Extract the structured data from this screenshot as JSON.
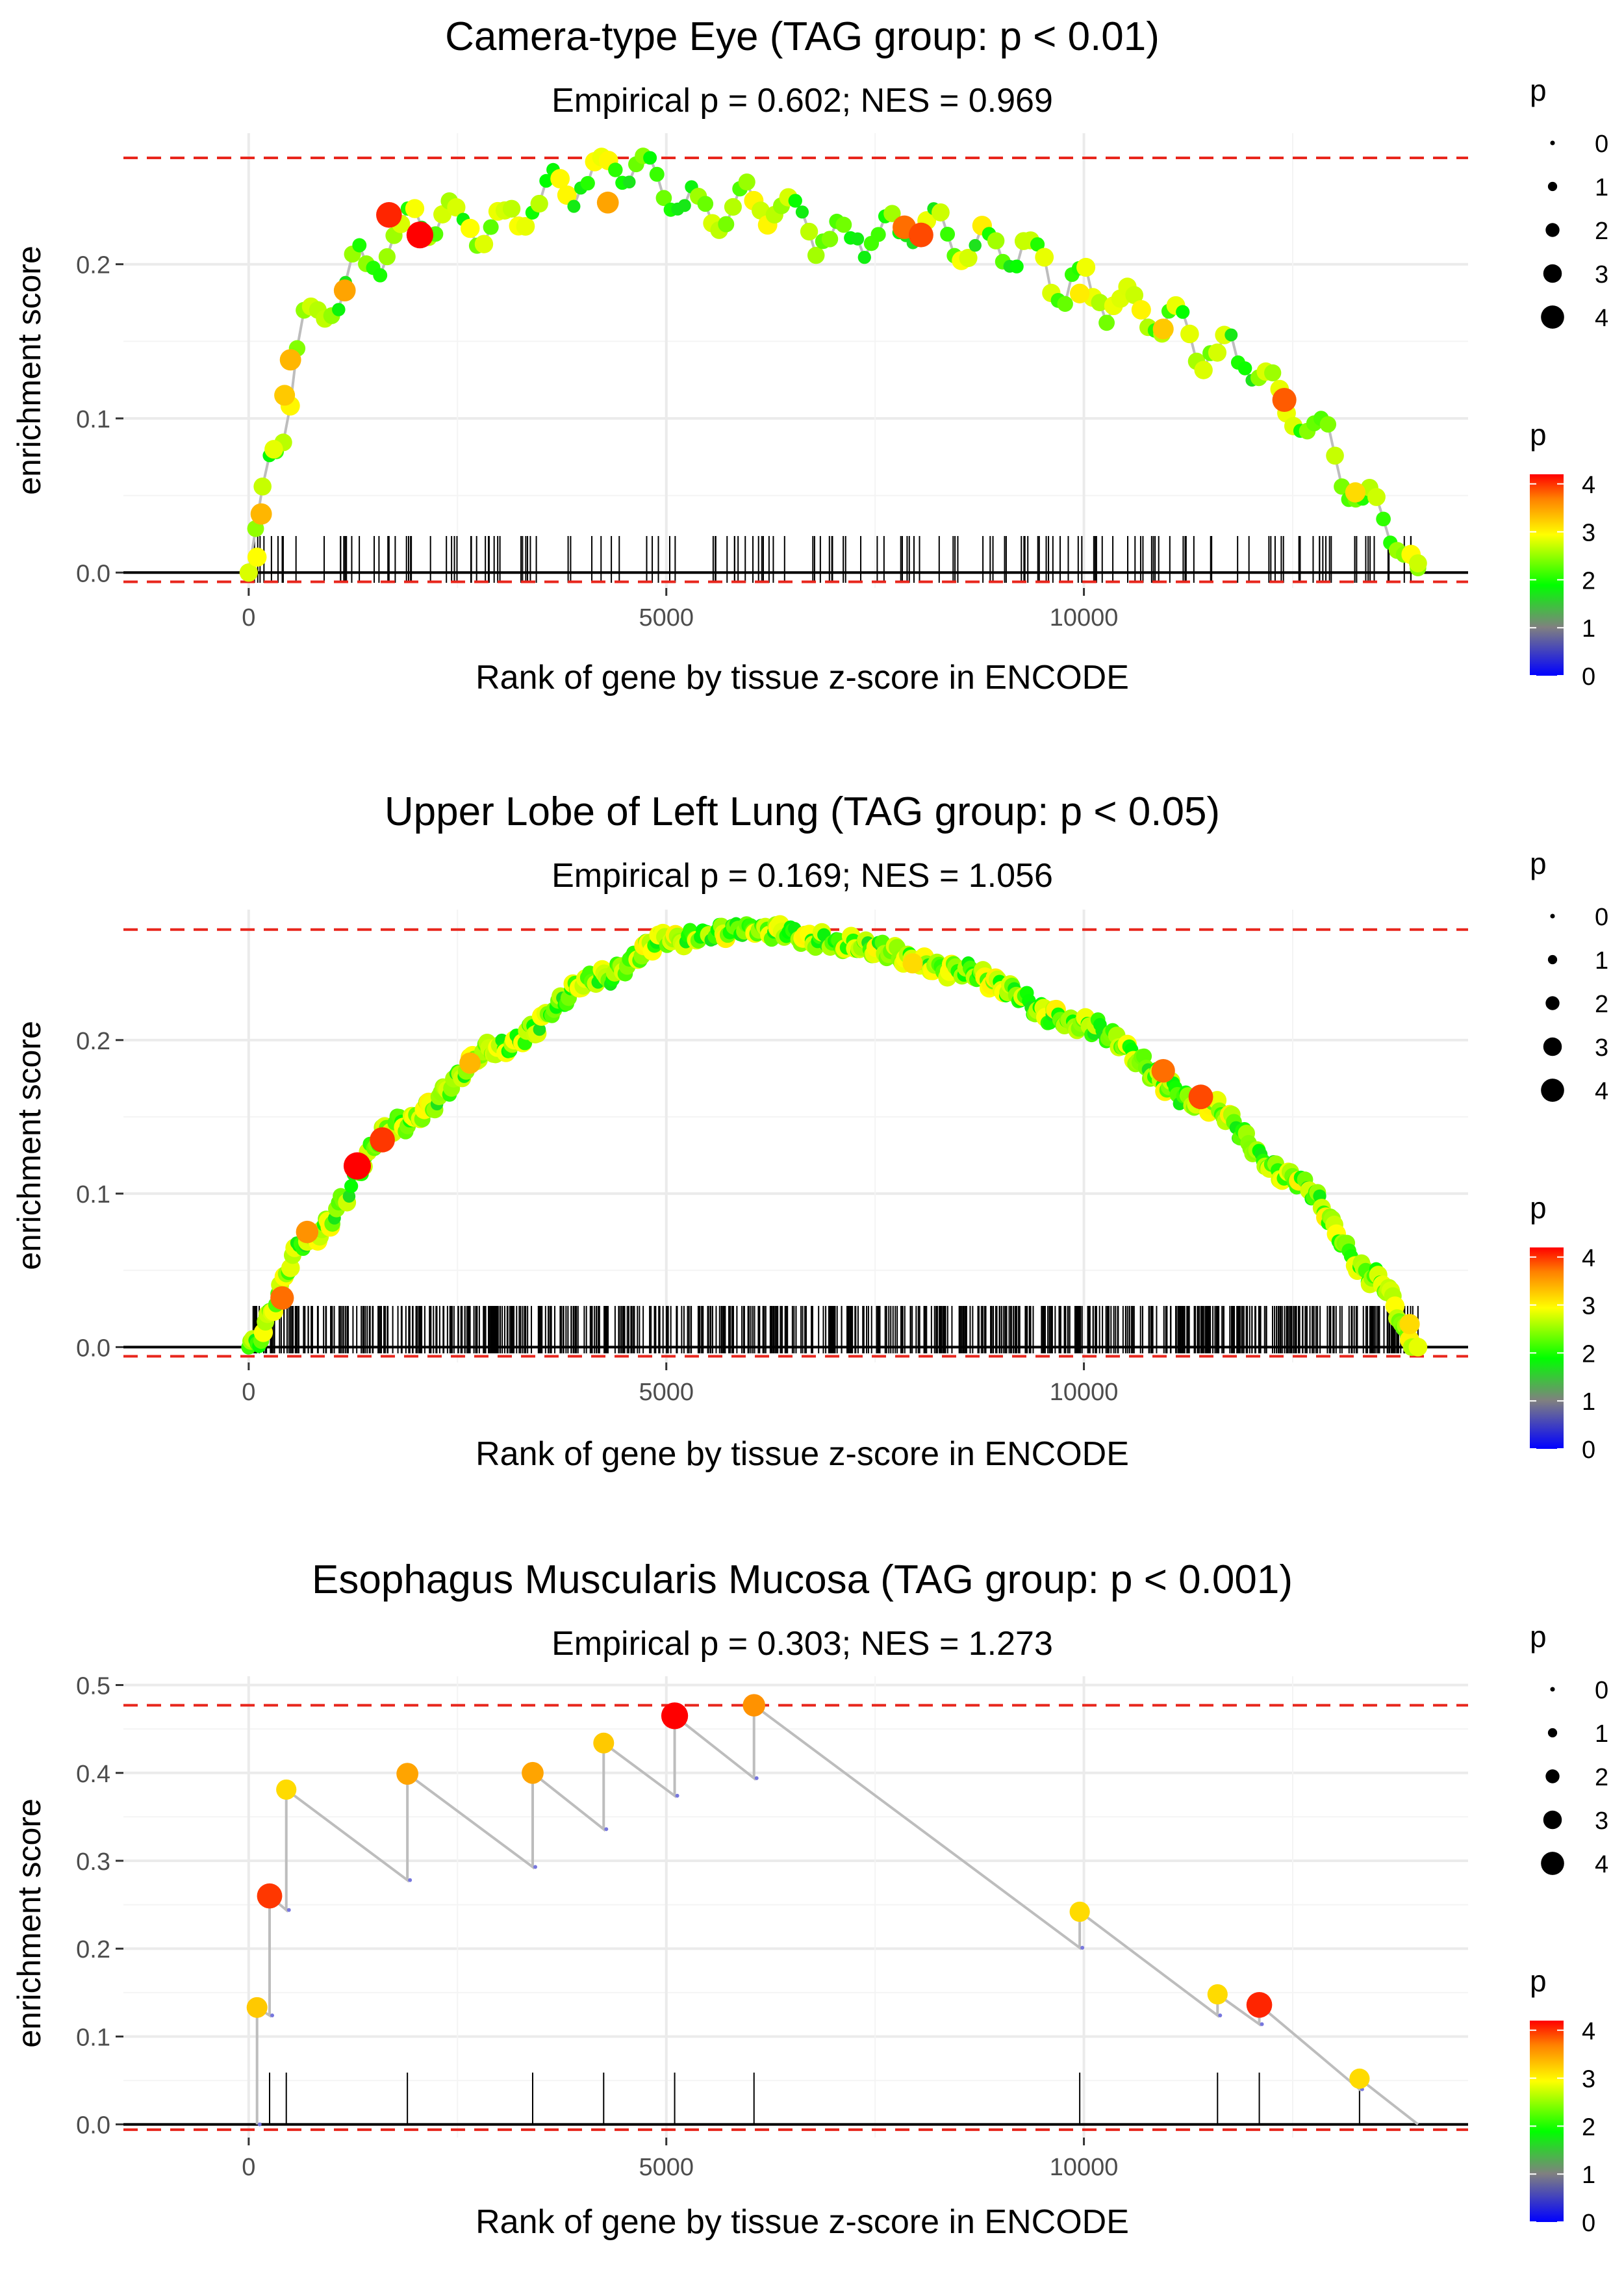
{
  "chart_data": [
    {
      "type": "line",
      "title": "Camera-type Eye (TAG group: p < 0.01)",
      "subtitle": "Empirical p = 0.602; NES = 0.969",
      "xlabel": "Rank of gene by tissue z-score in ENCODE",
      "ylabel": "enrichment score",
      "xlim": [
        -1500,
        14600
      ],
      "ylim": [
        -0.01,
        0.285
      ],
      "x_ticks": [
        0,
        5000,
        10000
      ],
      "x_tick_labels": [
        "0",
        "5000",
        "10000"
      ],
      "y_ticks": [
        0.0,
        0.1,
        0.2
      ],
      "y_tick_labels": [
        "0.0",
        "0.1",
        "0.2"
      ],
      "max_es": 0.269,
      "min_es": -0.006,
      "rug_count": 160,
      "highlight_points": [
        {
          "x": 100,
          "y": 0.01,
          "p": 2.8
        },
        {
          "x": 150,
          "y": 0.038,
          "p": 3.2
        },
        {
          "x": 300,
          "y": 0.08,
          "p": 2.7
        },
        {
          "x": 430,
          "y": 0.115,
          "p": 3.1
        },
        {
          "x": 500,
          "y": 0.138,
          "p": 3.2
        },
        {
          "x": 1150,
          "y": 0.183,
          "p": 3.3
        },
        {
          "x": 1680,
          "y": 0.232,
          "p": 4.0
        },
        {
          "x": 2050,
          "y": 0.219,
          "p": 4.2
        },
        {
          "x": 4300,
          "y": 0.24,
          "p": 3.3
        },
        {
          "x": 7850,
          "y": 0.224,
          "p": 3.6
        },
        {
          "x": 8050,
          "y": 0.219,
          "p": 3.8
        },
        {
          "x": 9950,
          "y": 0.181,
          "p": 2.9
        },
        {
          "x": 10950,
          "y": 0.158,
          "p": 3.1
        },
        {
          "x": 12400,
          "y": 0.112,
          "p": 3.7
        },
        {
          "x": 13250,
          "y": 0.052,
          "p": 3.0
        },
        {
          "x": 14000,
          "y": 0.006,
          "p": 2.6
        }
      ]
    },
    {
      "type": "line",
      "title": "Upper Lobe of Left Lung (TAG group: p < 0.05)",
      "subtitle": "Empirical p = 0.169; NES = 1.056",
      "xlabel": "Rank of gene by tissue z-score in ENCODE",
      "ylabel": "enrichment score",
      "xlim": [
        -1500,
        14600
      ],
      "ylim": [
        -0.01,
        0.285
      ],
      "x_ticks": [
        0,
        5000,
        10000
      ],
      "x_tick_labels": [
        "0",
        "5000",
        "10000"
      ],
      "y_ticks": [
        0.0,
        0.1,
        0.2
      ],
      "y_tick_labels": [
        "0.0",
        "0.1",
        "0.2"
      ],
      "max_es": 0.272,
      "min_es": -0.006,
      "rug_count": 700,
      "highlight_points": [
        {
          "x": 400,
          "y": 0.032,
          "p": 3.6
        },
        {
          "x": 700,
          "y": 0.075,
          "p": 3.4
        },
        {
          "x": 1300,
          "y": 0.118,
          "p": 4.3
        },
        {
          "x": 1600,
          "y": 0.135,
          "p": 3.9
        },
        {
          "x": 2650,
          "y": 0.185,
          "p": 3.2
        },
        {
          "x": 7950,
          "y": 0.25,
          "p": 3.0
        },
        {
          "x": 10950,
          "y": 0.18,
          "p": 3.6
        },
        {
          "x": 11400,
          "y": 0.163,
          "p": 3.8
        },
        {
          "x": 13900,
          "y": 0.015,
          "p": 3.0
        }
      ]
    },
    {
      "type": "line",
      "title": "Esophagus Muscularis Mucosa (TAG group: p < 0.001)",
      "subtitle": "Empirical p = 0.303; NES = 1.273",
      "xlabel": "Rank of gene by tissue z-score in ENCODE",
      "ylabel": "enrichment score",
      "xlim": [
        -1500,
        14600
      ],
      "ylim": [
        -0.015,
        0.51
      ],
      "x_ticks": [
        0,
        5000,
        10000
      ],
      "x_tick_labels": [
        "0",
        "5000",
        "10000"
      ],
      "y_ticks": [
        0.0,
        0.1,
        0.2,
        0.3,
        0.4,
        0.5
      ],
      "y_tick_labels": [
        "0.0",
        "0.1",
        "0.2",
        "0.3",
        "0.4",
        "0.5"
      ],
      "max_es": 0.477,
      "min_es": -0.006,
      "hits": [
        {
          "x": 100,
          "before": 0.0,
          "after": 0.133,
          "p": 3.1
        },
        {
          "x": 250,
          "before": 0.124,
          "after": 0.26,
          "p": 3.9
        },
        {
          "x": 450,
          "before": 0.244,
          "after": 0.381,
          "p": 3.0
        },
        {
          "x": 1900,
          "before": 0.278,
          "after": 0.399,
          "p": 3.3
        },
        {
          "x": 3400,
          "before": 0.293,
          "after": 0.4,
          "p": 3.3
        },
        {
          "x": 4250,
          "before": 0.336,
          "after": 0.434,
          "p": 3.1
        },
        {
          "x": 5100,
          "before": 0.374,
          "after": 0.465,
          "p": 4.2
        },
        {
          "x": 6050,
          "before": 0.394,
          "after": 0.477,
          "p": 3.4
        },
        {
          "x": 9950,
          "before": 0.201,
          "after": 0.242,
          "p": 3.0
        },
        {
          "x": 11600,
          "before": 0.124,
          "after": 0.148,
          "p": 3.0
        },
        {
          "x": 12100,
          "before": 0.114,
          "after": 0.136,
          "p": 4.0
        },
        {
          "x": 13300,
          "before": 0.04,
          "after": 0.052,
          "p": 3.0
        }
      ],
      "end_point": {
        "x": 14000,
        "y": 0.0
      }
    }
  ],
  "legend": {
    "size_title": "p",
    "size_labels": [
      "0",
      "1",
      "2",
      "3",
      "4"
    ],
    "color_title": "p",
    "color_labels": [
      "0",
      "1",
      "2",
      "3",
      "4"
    ]
  },
  "colors": {
    "path_line": "#bdbdbd",
    "threshold_line": "#e8261c",
    "grid": "#ebebeb",
    "axis_text": "#4d4d4d"
  }
}
